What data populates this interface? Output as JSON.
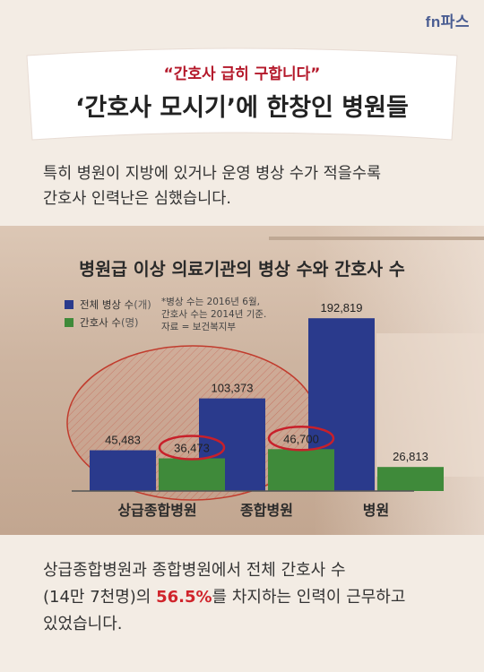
{
  "logo": "fn파스",
  "banner": {
    "subtitle": "“간호사 급히 구합니다”",
    "title": "‘간호사 모시기’에 한창인 병원들"
  },
  "intro": {
    "line1": "특히 병원이 지방에 있거나 운영 병상 수가 적을수록",
    "line2": "간호사 인력난은 심했습니다."
  },
  "chart_title": "병원급 이상 의료기관의 병상 수와 간호사 수",
  "legend": [
    {
      "label": "전체 병상 수",
      "unit": "(개)",
      "color": "#2a3a8c"
    },
    {
      "label": "간호사 수",
      "unit": "(명)",
      "color": "#3f8a3a"
    }
  ],
  "note": {
    "line1": "*병상 수는 2016년 6월,",
    "line2": "간호사 수는 2014년 기준.",
    "line3": "자료 = 보건복지부"
  },
  "chart_data": {
    "type": "bar",
    "categories": [
      "상급종합병원",
      "종합병원",
      "병원"
    ],
    "series": [
      {
        "name": "전체 병상 수(개)",
        "values": [
          45483,
          103373,
          192819
        ],
        "color": "#2a3a8c"
      },
      {
        "name": "간호사 수(명)",
        "values": [
          36473,
          46700,
          26813
        ],
        "color": "#3f8a3a"
      }
    ],
    "value_labels": [
      [
        "45,483",
        "103,373",
        "192,819"
      ],
      [
        "36,473",
        "46,700",
        "26,813"
      ]
    ],
    "circled_values": [
      "36,473",
      "46,700"
    ],
    "highlight_ellipse_categories": [
      "상급종합병원",
      "종합병원"
    ],
    "ylim": [
      0,
      200000
    ],
    "grid": false,
    "legend_position": "top-left"
  },
  "closing": {
    "line1": "상급종합병원과 종합병원에서 전체 간호사 수",
    "line2_before": "(14만 7천명)의 ",
    "line2_highlight": "56.5%",
    "line2_after": "를 차지하는 인력이 근무하고",
    "line3": "있었습니다."
  },
  "colors": {
    "accent_red": "#d0242b",
    "banner_text_red": "#b4182a",
    "logo_blue": "#4a5d92"
  }
}
